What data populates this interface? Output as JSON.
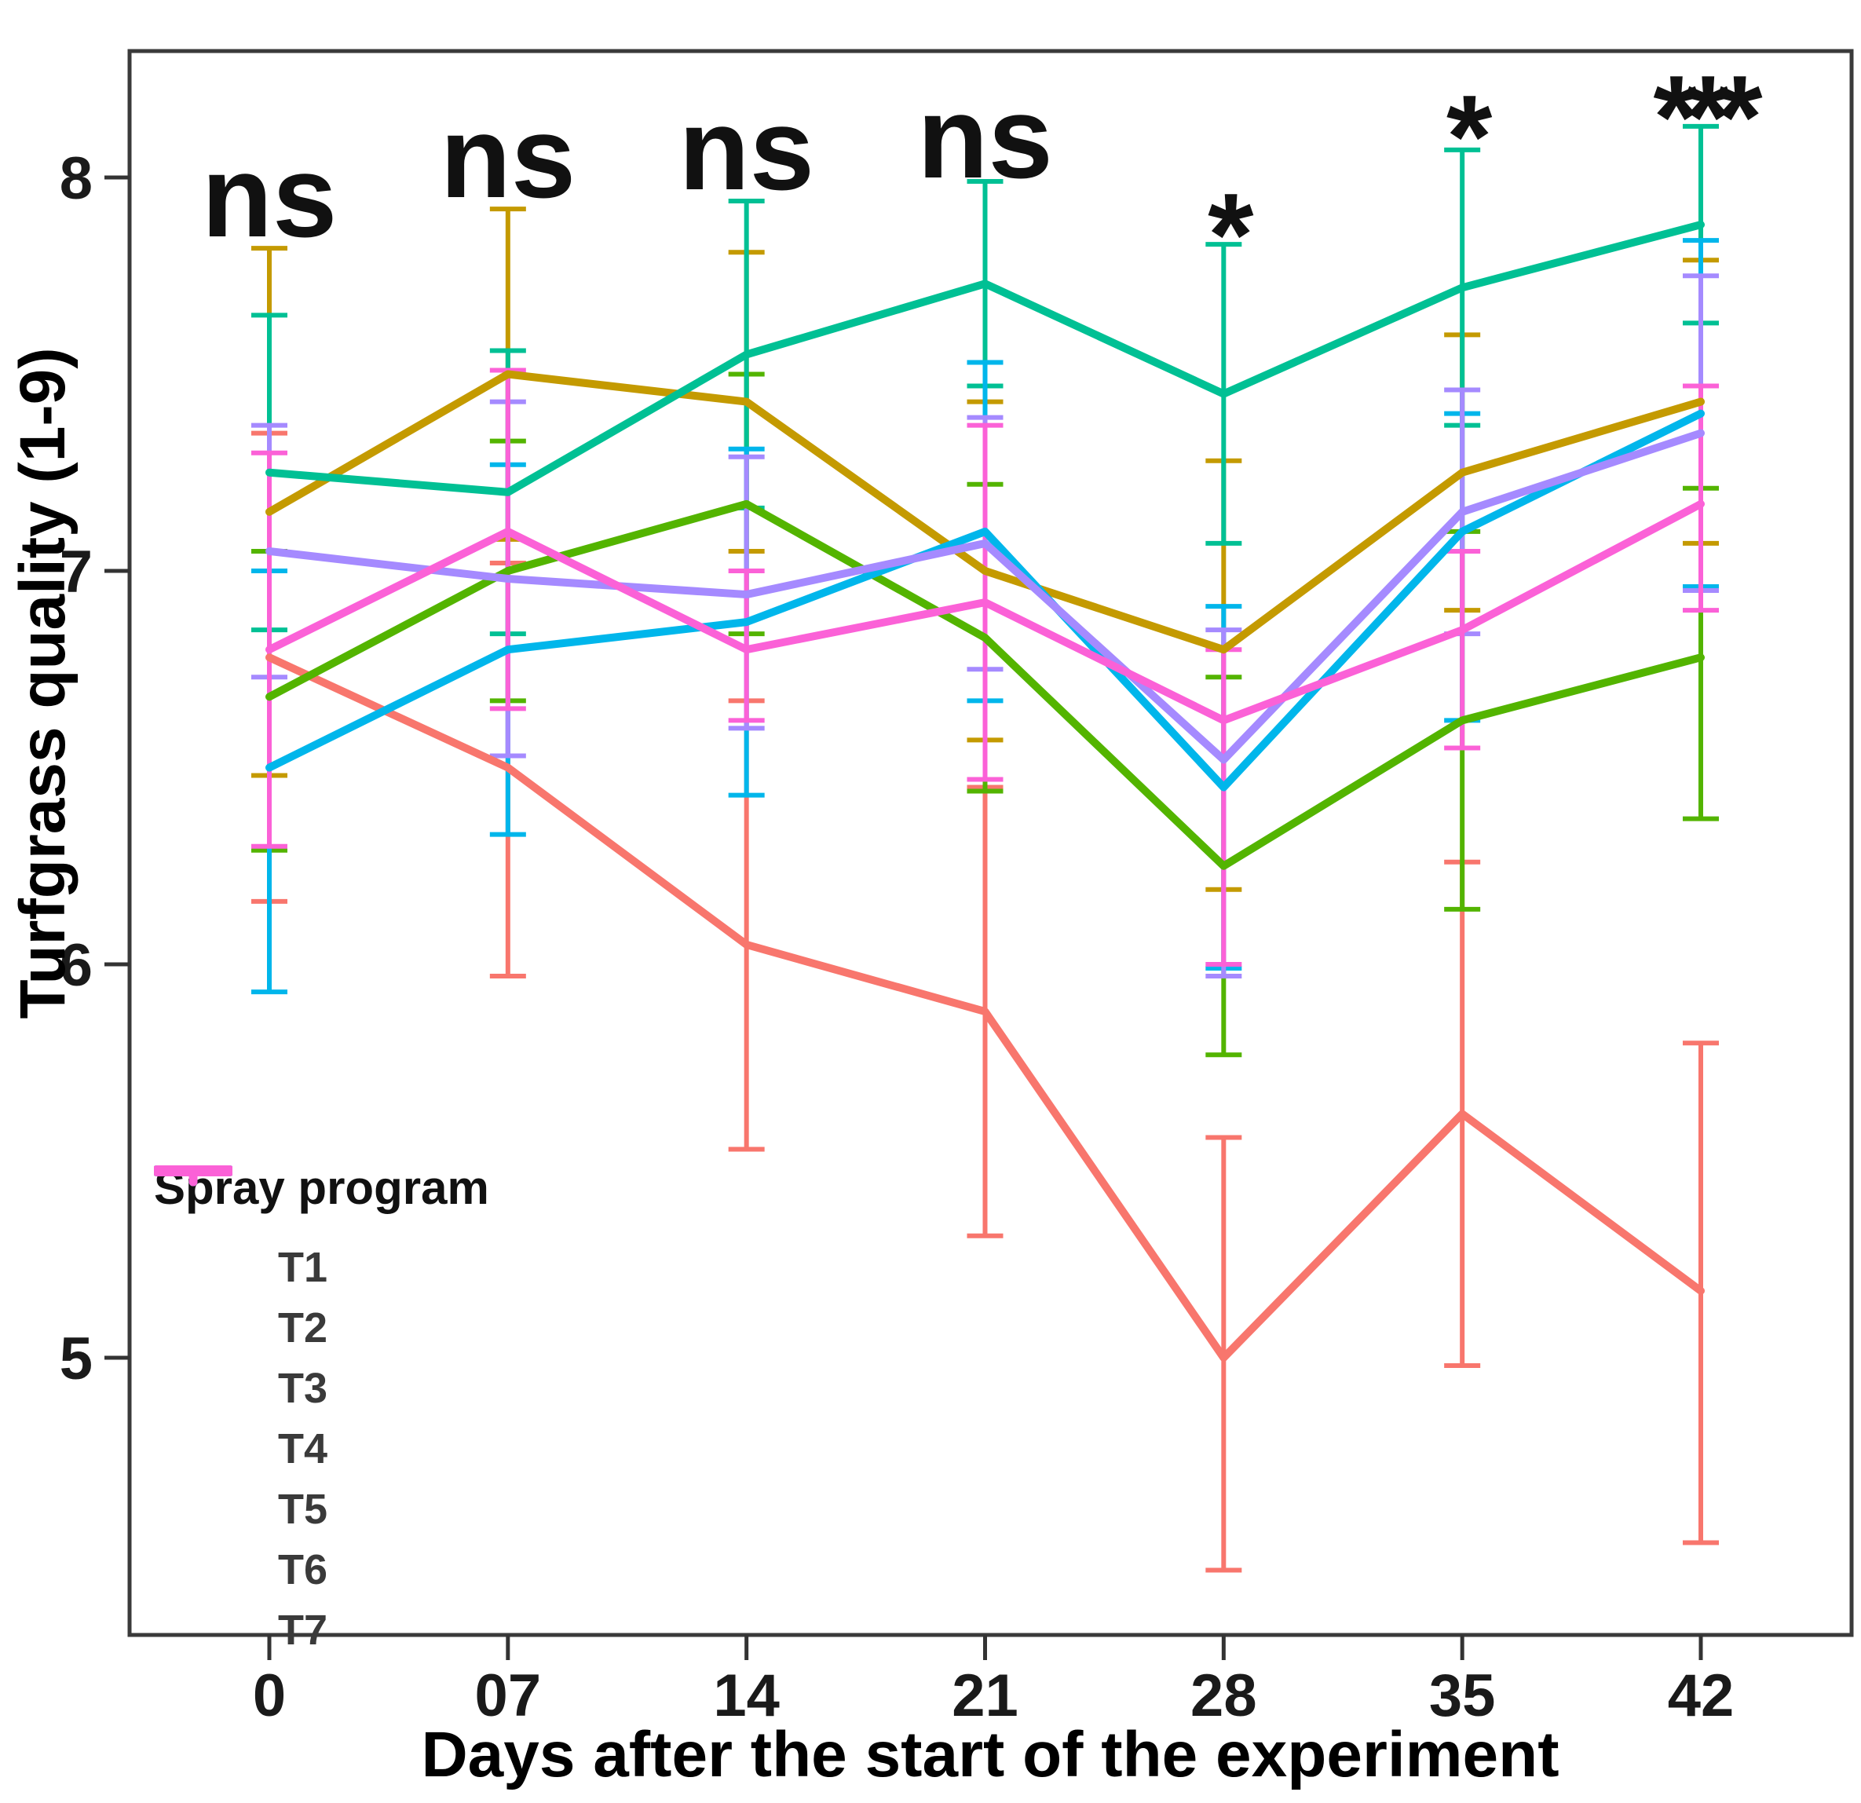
{
  "chart_data": {
    "type": "line",
    "title": "",
    "xlabel": "Days after the start of the experiment",
    "ylabel": "Turfgrass quality (1-9)",
    "legend_title": "Spray program",
    "legend_position": "bottom-left-inside",
    "grid": false,
    "x_days": [
      0,
      7,
      14,
      21,
      28,
      35,
      42
    ],
    "x_tick_labels": [
      "0",
      "07",
      "14",
      "21",
      "28",
      "35",
      "42"
    ],
    "y_ticks": [
      8,
      7,
      6,
      5
    ],
    "y_tick_labels": [
      "8",
      "7",
      "6",
      "5"
    ],
    "ylim": [
      4.3,
      8.35
    ],
    "error_bars": true,
    "series": [
      {
        "name": "T1",
        "color": "#F8766D",
        "values": [
          6.78,
          6.5,
          6.05,
          5.88,
          5.0,
          5.62,
          5.17
        ],
        "upper": [
          7.35,
          7.02,
          6.67,
          6.45,
          5.56,
          6.26,
          5.8
        ],
        "lower": [
          6.16,
          5.97,
          5.53,
          5.31,
          4.46,
          4.98,
          4.53
        ]
      },
      {
        "name": "T2",
        "color": "#C49A00",
        "values": [
          7.15,
          7.5,
          7.43,
          7.0,
          6.8,
          7.25,
          7.43
        ],
        "upper": [
          7.82,
          7.92,
          7.81,
          7.43,
          7.28,
          7.6,
          7.79
        ],
        "lower": [
          6.48,
          7.08,
          7.05,
          6.57,
          6.19,
          6.9,
          7.07
        ]
      },
      {
        "name": "T3",
        "color": "#53B400",
        "values": [
          6.68,
          7.0,
          7.17,
          6.83,
          6.25,
          6.62,
          6.78
        ],
        "upper": [
          7.05,
          7.33,
          7.5,
          7.22,
          6.73,
          7.1,
          7.21
        ],
        "lower": [
          6.29,
          6.67,
          6.84,
          6.44,
          5.77,
          6.14,
          6.37
        ]
      },
      {
        "name": "T4",
        "color": "#00C094",
        "values": [
          7.25,
          7.2,
          7.55,
          7.73,
          7.45,
          7.72,
          7.88
        ],
        "upper": [
          7.65,
          7.56,
          7.94,
          7.99,
          7.83,
          8.07,
          8.13
        ],
        "lower": [
          6.85,
          6.84,
          7.16,
          7.47,
          7.07,
          7.37,
          7.63
        ]
      },
      {
        "name": "T5",
        "color": "#00B6EB",
        "values": [
          6.5,
          6.8,
          6.87,
          7.1,
          6.45,
          7.1,
          7.4
        ],
        "upper": [
          7.0,
          7.27,
          7.31,
          7.53,
          6.91,
          7.4,
          7.84
        ],
        "lower": [
          5.93,
          6.33,
          6.43,
          6.67,
          5.99,
          6.62,
          6.96
        ]
      },
      {
        "name": "T6",
        "color": "#A58AFF",
        "values": [
          7.05,
          6.98,
          6.94,
          7.07,
          6.52,
          7.15,
          7.35
        ],
        "upper": [
          7.37,
          7.43,
          7.29,
          7.39,
          6.85,
          7.46,
          7.75
        ],
        "lower": [
          6.73,
          6.53,
          6.6,
          6.75,
          5.97,
          6.84,
          6.95
        ]
      },
      {
        "name": "T7",
        "color": "#FB61D7",
        "values": [
          6.8,
          7.1,
          6.8,
          6.92,
          6.62,
          6.85,
          7.17
        ],
        "upper": [
          7.3,
          7.51,
          7.0,
          7.37,
          6.8,
          7.05,
          7.47
        ],
        "lower": [
          6.3,
          6.65,
          6.62,
          6.47,
          6.0,
          6.55,
          6.9
        ]
      }
    ],
    "annotations": [
      {
        "day": 0,
        "label": "ns",
        "y": 7.95
      },
      {
        "day": 7,
        "label": "ns",
        "y": 8.05
      },
      {
        "day": 14,
        "label": "ns",
        "y": 8.07
      },
      {
        "day": 21,
        "label": "ns",
        "y": 8.1
      },
      {
        "day": 28,
        "label": "*",
        "y": 7.92
      },
      {
        "day": 35,
        "label": "*",
        "y": 8.17
      },
      {
        "day": 42,
        "label": "***",
        "y": 8.22
      }
    ]
  }
}
